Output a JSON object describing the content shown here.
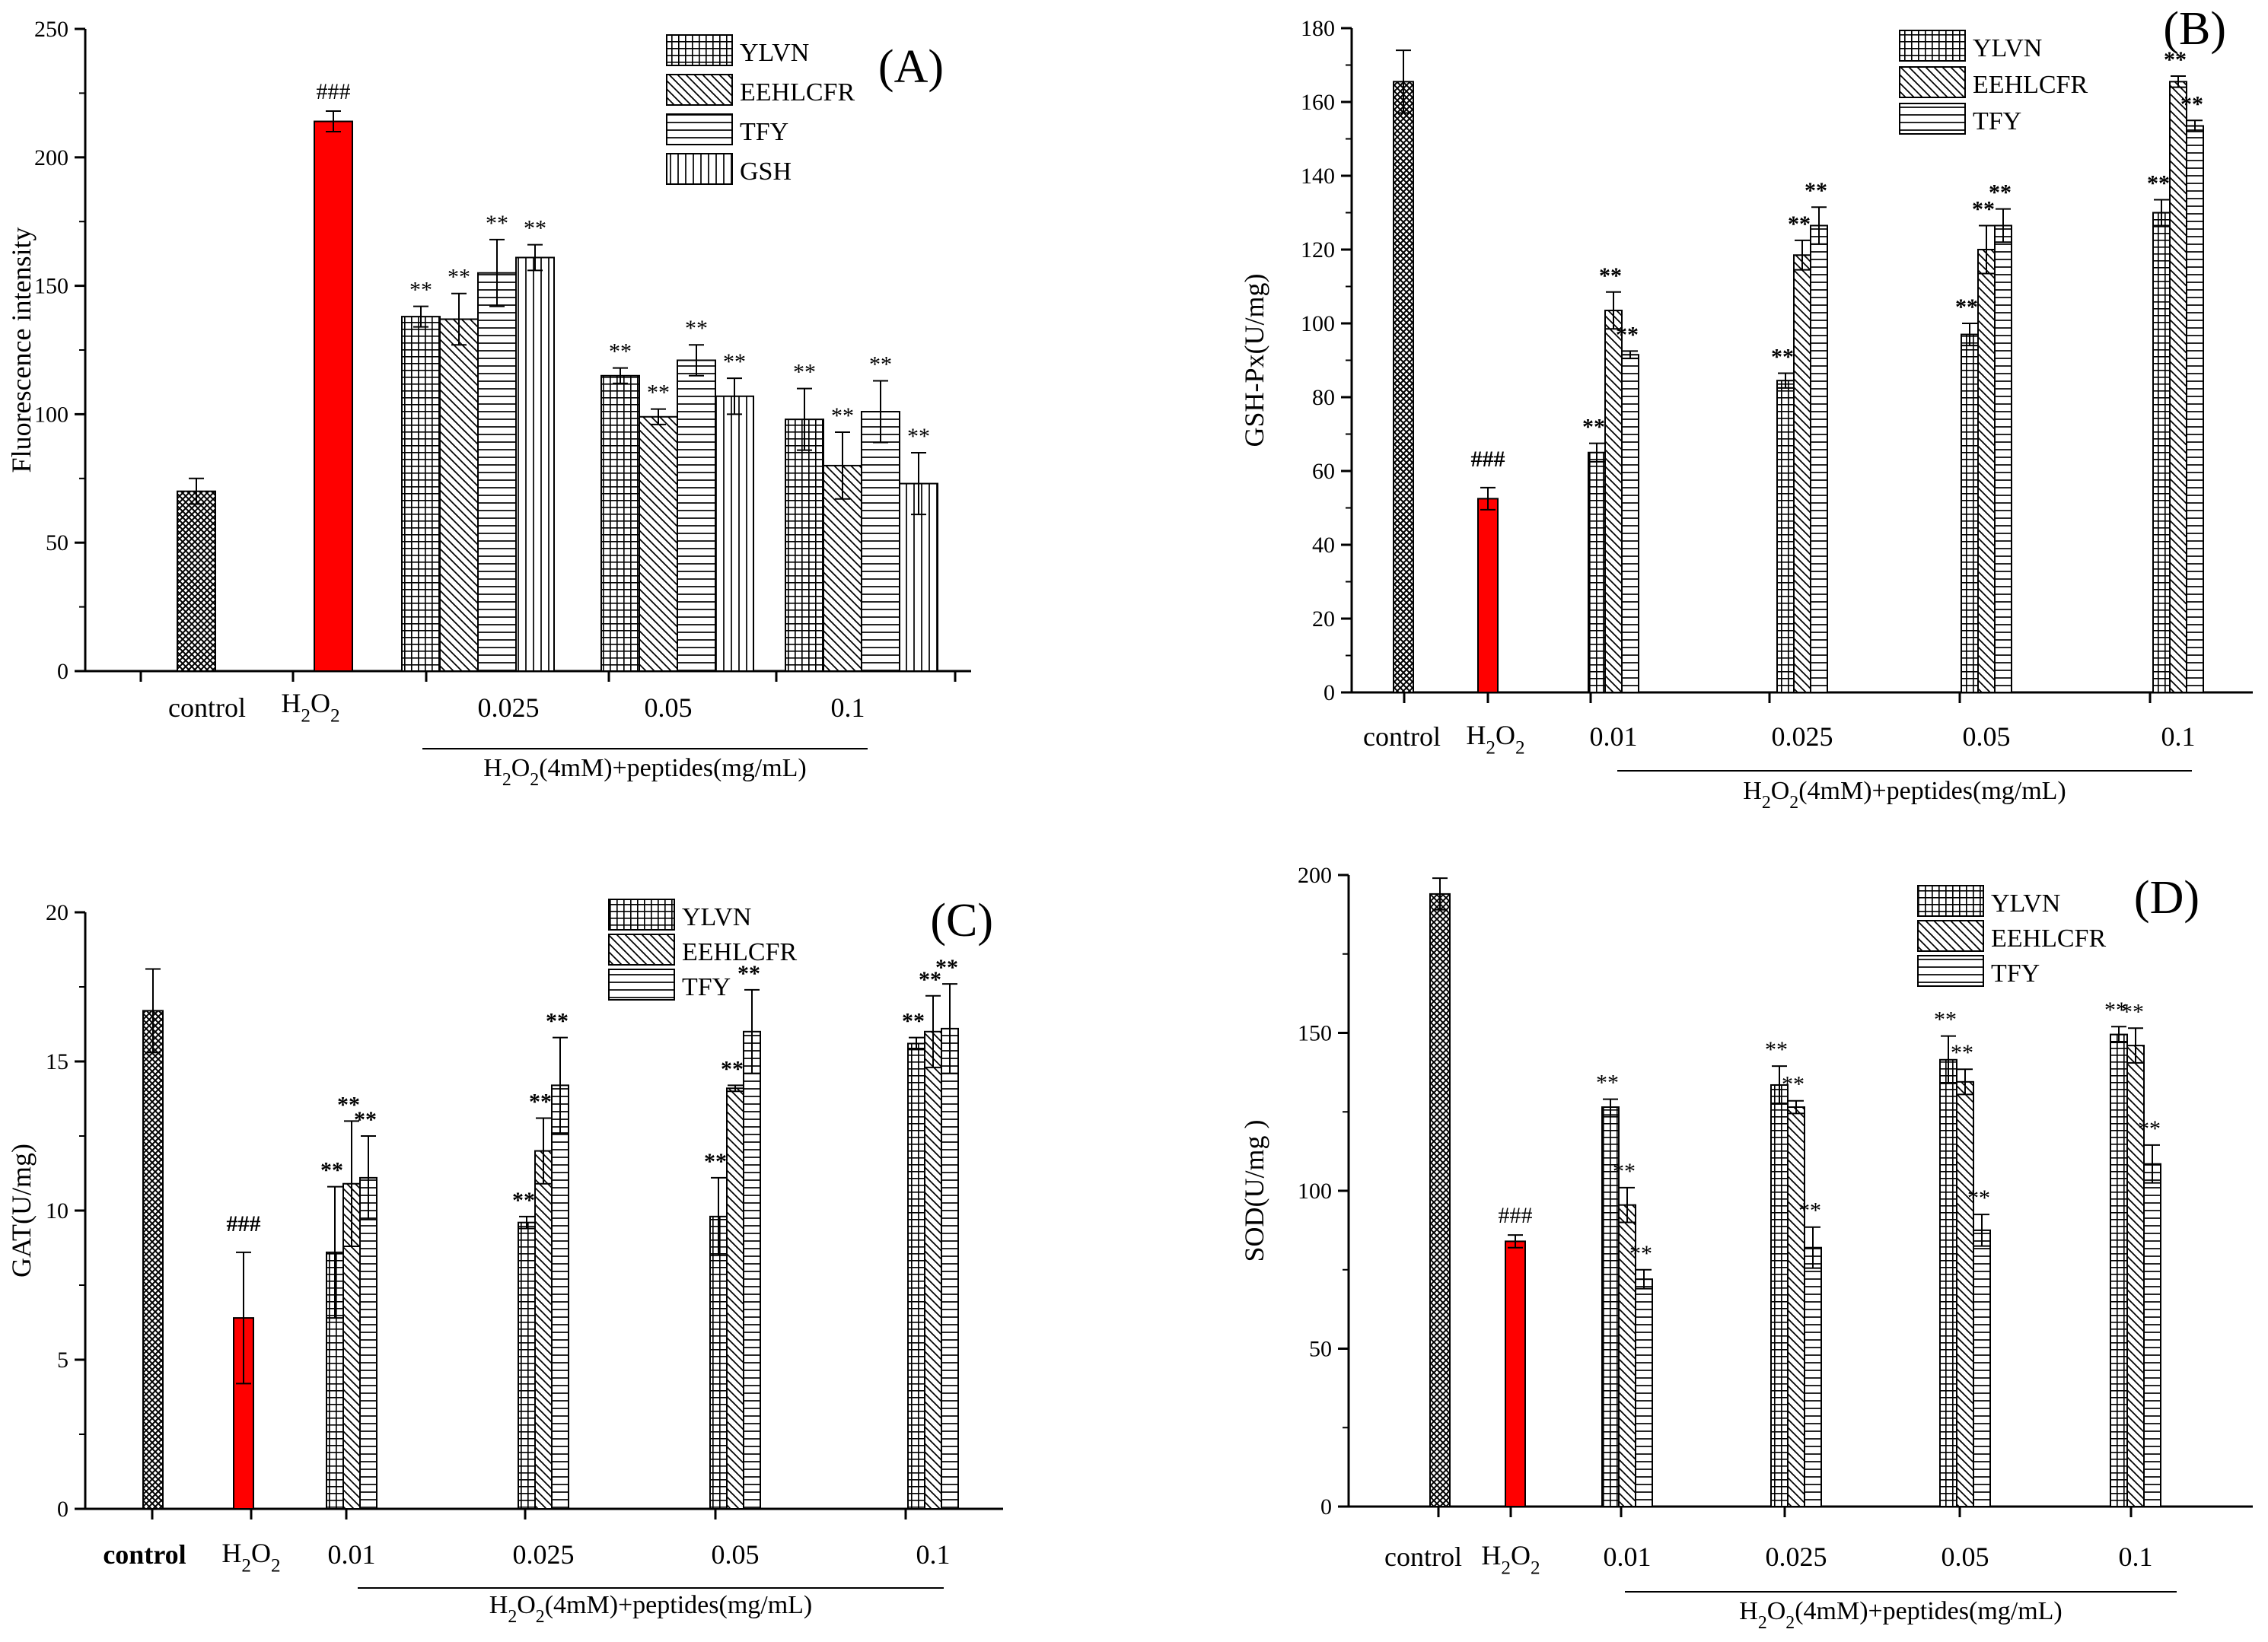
{
  "chart_data": [
    {
      "id": "A",
      "type": "bar",
      "panel_label": "(A)",
      "ylabel": "Fluorescence intensity",
      "ylim": [
        0,
        250
      ],
      "yticks": [
        0,
        50,
        100,
        150,
        200,
        250
      ],
      "group_label": "H2O2(4mM)+peptides(mg/mL)",
      "controls": [
        {
          "name": "control",
          "label": "control",
          "value": 70,
          "err": 5,
          "pattern": "cross",
          "annot": ""
        },
        {
          "name": "h2o2",
          "label": "H2O2",
          "value": 214,
          "err": 4,
          "pattern": "red",
          "annot": "###"
        }
      ],
      "series": [
        {
          "name": "YLVN",
          "pattern": "grid"
        },
        {
          "name": "EEHLCFR",
          "pattern": "diag"
        },
        {
          "name": "TFY",
          "pattern": "hlines"
        },
        {
          "name": "GSH",
          "pattern": "vlines"
        }
      ],
      "groups": [
        {
          "label": "0.025",
          "values": [
            138,
            137,
            155,
            161
          ],
          "errs": [
            4,
            10,
            13,
            5
          ],
          "annots": [
            "**",
            "**",
            "**",
            "**"
          ]
        },
        {
          "label": "0.05",
          "values": [
            115,
            99,
            121,
            107
          ],
          "errs": [
            3,
            3,
            6,
            7
          ],
          "annots": [
            "**",
            "**",
            "**",
            "**"
          ]
        },
        {
          "label": "0.1",
          "values": [
            98,
            80,
            101,
            73
          ],
          "errs": [
            12,
            13,
            12,
            12
          ],
          "annots": [
            "**",
            "**",
            "**",
            "**"
          ]
        }
      ]
    },
    {
      "id": "B",
      "type": "bar",
      "panel_label": "(B)",
      "ylabel": "GSH-Px(U/mg)",
      "ylim": [
        0,
        180
      ],
      "yticks": [
        0,
        20,
        40,
        60,
        80,
        100,
        120,
        140,
        160,
        180
      ],
      "group_label": "H2O2(4mM)+peptides(mg/mL)",
      "controls": [
        {
          "name": "control",
          "label": "control",
          "value": 165.5,
          "err": 8.5,
          "pattern": "cross",
          "annot": ""
        },
        {
          "name": "h2o2",
          "label": "H2O2",
          "value": 52.5,
          "err": 3,
          "pattern": "red",
          "annot": "###"
        }
      ],
      "series": [
        {
          "name": "YLVN",
          "pattern": "grid"
        },
        {
          "name": "EEHLCFR",
          "pattern": "diag"
        },
        {
          "name": "TFY",
          "pattern": "hlines"
        }
      ],
      "groups": [
        {
          "label": "0.01",
          "values": [
            65,
            103.5,
            91.5
          ],
          "errs": [
            2.5,
            5,
            1
          ],
          "annots": [
            "**",
            "**",
            "**"
          ]
        },
        {
          "label": "0.025",
          "values": [
            84.5,
            118.5,
            126.5
          ],
          "errs": [
            2,
            4,
            5
          ],
          "annots": [
            "**",
            "**",
            "**"
          ]
        },
        {
          "label": "0.05",
          "values": [
            97,
            120,
            126.5
          ],
          "errs": [
            3,
            6.5,
            4.5
          ],
          "annots": [
            "**",
            "**",
            "**"
          ]
        },
        {
          "label": "0.1",
          "values": [
            130,
            165.5,
            153.5
          ],
          "errs": [
            3.5,
            1.5,
            1.5
          ],
          "annots": [
            "**",
            "**",
            "**"
          ]
        }
      ]
    },
    {
      "id": "C",
      "type": "bar",
      "panel_label": "(C)",
      "ylabel": "GAT(U/mg)",
      "ylim": [
        0,
        20
      ],
      "yticks": [
        0,
        5,
        10,
        15,
        20
      ],
      "group_label": "H2O2(4mM)+peptides(mg/mL)",
      "controls": [
        {
          "name": "control",
          "label": "control",
          "value": 16.7,
          "err": 1.4,
          "pattern": "cross",
          "annot": ""
        },
        {
          "name": "h2o2",
          "label": "H2O2",
          "value": 6.4,
          "err": 2.2,
          "pattern": "red",
          "annot": "###"
        }
      ],
      "series": [
        {
          "name": "YLVN",
          "pattern": "grid"
        },
        {
          "name": "EEHLCFR",
          "pattern": "diag"
        },
        {
          "name": "TFY",
          "pattern": "hlines"
        }
      ],
      "groups": [
        {
          "label": "0.01",
          "values": [
            8.6,
            10.9,
            11.1
          ],
          "errs": [
            2.2,
            2.1,
            1.4
          ],
          "annots": [
            "**",
            "**",
            "**"
          ]
        },
        {
          "label": "0.025",
          "values": [
            9.6,
            12.0,
            14.2
          ],
          "errs": [
            0.2,
            1.1,
            1.6
          ],
          "annots": [
            "**",
            "**",
            "**"
          ]
        },
        {
          "label": "0.05",
          "values": [
            9.8,
            14.1,
            16.0
          ],
          "errs": [
            1.3,
            0.1,
            1.4
          ],
          "annots": [
            "**",
            "**",
            "**"
          ]
        },
        {
          "label": "0.1",
          "values": [
            15.6,
            16.0,
            16.1
          ],
          "errs": [
            0.2,
            1.2,
            1.5
          ],
          "annots": [
            "**",
            "**",
            "**"
          ]
        }
      ]
    },
    {
      "id": "D",
      "type": "bar",
      "panel_label": "(D)",
      "ylabel": "SOD(U/mg )",
      "ylim": [
        0,
        200
      ],
      "yticks": [
        0,
        50,
        100,
        150,
        200
      ],
      "group_label": "H2O2(4mM)+peptides(mg/mL)",
      "controls": [
        {
          "name": "control",
          "label": "control",
          "value": 194,
          "err": 5,
          "pattern": "cross",
          "annot": ""
        },
        {
          "name": "h2o2",
          "label": "H2O2",
          "value": 84,
          "err": 2,
          "pattern": "red",
          "annot": "###"
        }
      ],
      "series": [
        {
          "name": "YLVN",
          "pattern": "grid"
        },
        {
          "name": "EEHLCFR",
          "pattern": "diag"
        },
        {
          "name": "TFY",
          "pattern": "hlines"
        }
      ],
      "groups": [
        {
          "label": "0.01",
          "values": [
            126.5,
            95.5,
            72
          ],
          "errs": [
            2.5,
            5.5,
            3
          ],
          "annots": [
            "**",
            "**",
            "**"
          ]
        },
        {
          "label": "0.025",
          "values": [
            133.5,
            126.5,
            82
          ],
          "errs": [
            6,
            2,
            6.5
          ],
          "annots": [
            "**",
            "**",
            "**"
          ]
        },
        {
          "label": "0.05",
          "values": [
            141.5,
            134.5,
            87.5
          ],
          "errs": [
            7.5,
            4,
            5
          ],
          "annots": [
            "**",
            "**",
            "**"
          ]
        },
        {
          "label": "0.1",
          "values": [
            149.5,
            146,
            108.5
          ],
          "errs": [
            2.5,
            5.5,
            6
          ],
          "annots": [
            "**",
            "**",
            "**"
          ]
        }
      ]
    }
  ]
}
